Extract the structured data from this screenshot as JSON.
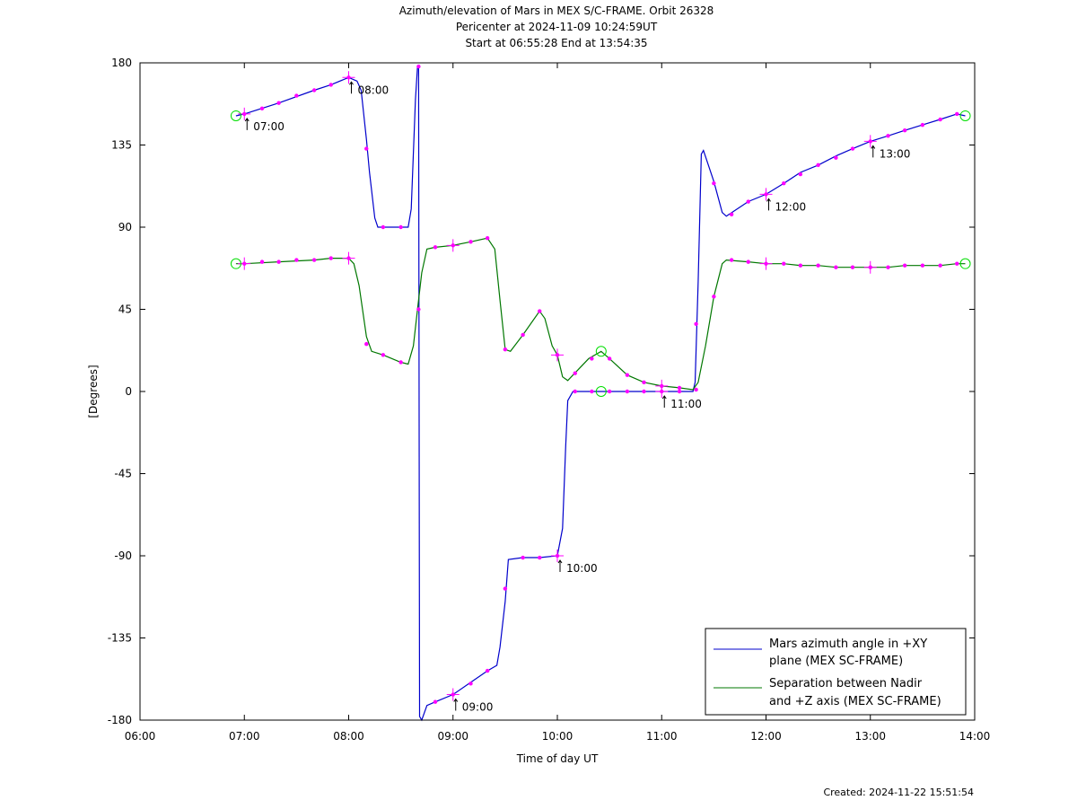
{
  "title": {
    "line1": "Azimuth/elevation of Mars in MEX S/C-FRAME.  Orbit 26328",
    "line2": "Pericenter at 2024-11-09 10:24:59UT",
    "line3": "Start at 06:55:28 End at 13:54:35"
  },
  "footer": {
    "created": "Created: 2024-11-22 15:51:54"
  },
  "colors": {
    "azimuth": "#0000cc",
    "separation": "#007700",
    "marker": "#ff00ff",
    "circle": "#00dd00"
  },
  "chart_data": {
    "type": "line",
    "xlabel": "Time of day UT",
    "ylabel": "[Degrees]",
    "xlim": [
      6.0,
      14.0
    ],
    "ylim": [
      -180,
      180
    ],
    "x_ticks": [
      6,
      7,
      8,
      9,
      10,
      11,
      12,
      13,
      14
    ],
    "x_tick_labels": [
      "06:00",
      "07:00",
      "08:00",
      "09:00",
      "10:00",
      "11:00",
      "12:00",
      "13:00",
      "14:00"
    ],
    "y_ticks": [
      180,
      135,
      90,
      45,
      0,
      -45,
      -90,
      -135,
      -180
    ],
    "y_tick_labels": [
      "180",
      "135",
      "90",
      "45",
      "0",
      "-45",
      "-90",
      "-135",
      "-180"
    ],
    "legend_position": "bottom-right",
    "series": [
      {
        "name": "Mars azimuth angle in +XY plane (MEX SC-FRAME)",
        "legend_lines": [
          "Mars azimuth angle in +XY",
          "plane (MEX SC-FRAME)"
        ],
        "points": [
          [
            6.92,
            151
          ],
          [
            7.0,
            152
          ],
          [
            7.33,
            158
          ],
          [
            7.67,
            165
          ],
          [
            7.83,
            168
          ],
          [
            8.0,
            172
          ],
          [
            8.08,
            170
          ],
          [
            8.12,
            165
          ],
          [
            8.17,
            138
          ],
          [
            8.2,
            120
          ],
          [
            8.25,
            95
          ],
          [
            8.28,
            90
          ],
          [
            8.33,
            90
          ],
          [
            8.5,
            90
          ],
          [
            8.57,
            90
          ],
          [
            8.6,
            100
          ],
          [
            8.64,
            160
          ],
          [
            8.66,
            178
          ],
          [
            8.67,
            178
          ],
          [
            8.68,
            -178
          ],
          [
            8.7,
            -180
          ],
          [
            8.75,
            -172
          ],
          [
            8.83,
            -170
          ],
          [
            9.0,
            -166
          ],
          [
            9.33,
            -153
          ],
          [
            9.42,
            -150
          ],
          [
            9.45,
            -140
          ],
          [
            9.5,
            -115
          ],
          [
            9.53,
            -92
          ],
          [
            9.67,
            -91
          ],
          [
            9.83,
            -91
          ],
          [
            10.0,
            -90
          ],
          [
            10.05,
            -75
          ],
          [
            10.08,
            -30
          ],
          [
            10.1,
            -5
          ],
          [
            10.15,
            0
          ],
          [
            10.42,
            0
          ],
          [
            11.0,
            0
          ],
          [
            11.3,
            0
          ],
          [
            11.32,
            5
          ],
          [
            11.35,
            60
          ],
          [
            11.38,
            130
          ],
          [
            11.4,
            132
          ],
          [
            11.5,
            115
          ],
          [
            11.58,
            98
          ],
          [
            11.62,
            96
          ],
          [
            11.83,
            104
          ],
          [
            12.0,
            108
          ],
          [
            12.17,
            114
          ],
          [
            12.33,
            120
          ],
          [
            12.5,
            124
          ],
          [
            12.67,
            129
          ],
          [
            12.83,
            133
          ],
          [
            13.0,
            137
          ],
          [
            13.17,
            140
          ],
          [
            13.33,
            143
          ],
          [
            13.5,
            146
          ],
          [
            13.67,
            149
          ],
          [
            13.83,
            152
          ],
          [
            13.91,
            151
          ]
        ],
        "markers": [
          [
            7.0,
            152
          ],
          [
            7.17,
            155
          ],
          [
            7.33,
            158
          ],
          [
            7.5,
            162
          ],
          [
            7.67,
            165
          ],
          [
            7.83,
            168
          ],
          [
            8.0,
            172
          ],
          [
            8.17,
            133
          ],
          [
            8.33,
            90
          ],
          [
            8.5,
            90
          ],
          [
            8.67,
            178
          ],
          [
            8.83,
            -170
          ],
          [
            9.0,
            -166
          ],
          [
            9.17,
            -160
          ],
          [
            9.33,
            -153
          ],
          [
            9.5,
            -108
          ],
          [
            9.67,
            -91
          ],
          [
            9.83,
            -91
          ],
          [
            10.0,
            -90
          ],
          [
            10.17,
            0
          ],
          [
            10.33,
            0
          ],
          [
            10.5,
            0
          ],
          [
            10.67,
            0
          ],
          [
            10.83,
            0
          ],
          [
            11.0,
            0
          ],
          [
            11.17,
            0
          ],
          [
            11.33,
            37
          ],
          [
            11.5,
            114
          ],
          [
            11.67,
            97
          ],
          [
            11.83,
            104
          ],
          [
            12.0,
            108
          ],
          [
            12.17,
            114
          ],
          [
            12.33,
            119
          ],
          [
            12.5,
            124
          ],
          [
            12.67,
            128
          ],
          [
            12.83,
            133
          ],
          [
            13.0,
            137
          ],
          [
            13.17,
            140
          ],
          [
            13.33,
            143
          ],
          [
            13.5,
            146
          ],
          [
            13.67,
            149
          ],
          [
            13.83,
            152
          ]
        ],
        "crosses": [
          [
            7.0,
            152
          ],
          [
            8.0,
            172
          ],
          [
            9.0,
            -166
          ],
          [
            10.0,
            -90
          ],
          [
            11.0,
            0
          ],
          [
            12.0,
            108
          ],
          [
            13.0,
            137
          ]
        ],
        "circles": [
          [
            6.92,
            151
          ],
          [
            10.42,
            0
          ],
          [
            13.91,
            151
          ]
        ]
      },
      {
        "name": "Separation between Nadir and +Z axis (MEX SC-FRAME)",
        "legend_lines": [
          "Separation between Nadir",
          "and +Z axis (MEX SC-FRAME)"
        ],
        "points": [
          [
            6.92,
            70
          ],
          [
            7.0,
            70
          ],
          [
            7.33,
            71
          ],
          [
            7.67,
            72
          ],
          [
            7.83,
            73
          ],
          [
            8.0,
            73
          ],
          [
            8.05,
            70
          ],
          [
            8.1,
            58
          ],
          [
            8.17,
            30
          ],
          [
            8.22,
            22
          ],
          [
            8.33,
            20
          ],
          [
            8.5,
            16
          ],
          [
            8.57,
            15
          ],
          [
            8.62,
            25
          ],
          [
            8.66,
            45
          ],
          [
            8.7,
            65
          ],
          [
            8.75,
            78
          ],
          [
            8.83,
            79
          ],
          [
            9.0,
            80
          ],
          [
            9.17,
            82
          ],
          [
            9.33,
            84
          ],
          [
            9.4,
            78
          ],
          [
            9.45,
            50
          ],
          [
            9.5,
            23
          ],
          [
            9.55,
            22
          ],
          [
            9.67,
            31
          ],
          [
            9.83,
            44
          ],
          [
            9.88,
            40
          ],
          [
            9.95,
            25
          ],
          [
            10.0,
            20
          ],
          [
            10.05,
            8
          ],
          [
            10.1,
            6
          ],
          [
            10.2,
            12
          ],
          [
            10.3,
            18
          ],
          [
            10.42,
            22
          ],
          [
            10.5,
            18
          ],
          [
            10.67,
            9
          ],
          [
            10.83,
            5
          ],
          [
            11.0,
            3
          ],
          [
            11.17,
            2
          ],
          [
            11.3,
            1
          ],
          [
            11.35,
            5
          ],
          [
            11.42,
            25
          ],
          [
            11.5,
            52
          ],
          [
            11.58,
            70
          ],
          [
            11.62,
            72
          ],
          [
            11.83,
            71
          ],
          [
            12.0,
            70
          ],
          [
            12.17,
            70
          ],
          [
            12.33,
            69
          ],
          [
            12.5,
            69
          ],
          [
            12.67,
            68
          ],
          [
            12.83,
            68
          ],
          [
            13.0,
            68
          ],
          [
            13.17,
            68
          ],
          [
            13.33,
            69
          ],
          [
            13.5,
            69
          ],
          [
            13.67,
            69
          ],
          [
            13.83,
            70
          ],
          [
            13.91,
            70
          ]
        ],
        "markers": [
          [
            7.0,
            70
          ],
          [
            7.17,
            71
          ],
          [
            7.33,
            71
          ],
          [
            7.5,
            72
          ],
          [
            7.67,
            72
          ],
          [
            7.83,
            73
          ],
          [
            8.0,
            73
          ],
          [
            8.17,
            26
          ],
          [
            8.33,
            20
          ],
          [
            8.5,
            16
          ],
          [
            8.67,
            45
          ],
          [
            8.83,
            79
          ],
          [
            9.0,
            80
          ],
          [
            9.17,
            82
          ],
          [
            9.33,
            84
          ],
          [
            9.5,
            23
          ],
          [
            9.67,
            31
          ],
          [
            9.83,
            44
          ],
          [
            10.0,
            20
          ],
          [
            10.17,
            10
          ],
          [
            10.33,
            18
          ],
          [
            10.5,
            18
          ],
          [
            10.67,
            9
          ],
          [
            10.83,
            5
          ],
          [
            11.0,
            3
          ],
          [
            11.17,
            2
          ],
          [
            11.33,
            1
          ],
          [
            11.5,
            52
          ],
          [
            11.67,
            72
          ],
          [
            11.83,
            71
          ],
          [
            12.0,
            70
          ],
          [
            12.17,
            70
          ],
          [
            12.33,
            69
          ],
          [
            12.5,
            69
          ],
          [
            12.67,
            68
          ],
          [
            12.83,
            68
          ],
          [
            13.0,
            68
          ],
          [
            13.17,
            68
          ],
          [
            13.33,
            69
          ],
          [
            13.5,
            69
          ],
          [
            13.67,
            69
          ],
          [
            13.83,
            70
          ]
        ],
        "crosses": [
          [
            7.0,
            70
          ],
          [
            8.0,
            73
          ],
          [
            9.0,
            80
          ],
          [
            10.0,
            20
          ],
          [
            11.0,
            3
          ],
          [
            12.0,
            70
          ],
          [
            13.0,
            68
          ]
        ],
        "circles": [
          [
            6.92,
            70
          ],
          [
            10.42,
            22
          ],
          [
            13.91,
            70
          ]
        ]
      }
    ],
    "annotations": [
      {
        "text": "07:00",
        "x": 7.0,
        "y": 152
      },
      {
        "text": "08:00",
        "x": 8.0,
        "y": 172
      },
      {
        "text": "09:00",
        "x": 9.0,
        "y": -166
      },
      {
        "text": "10:00",
        "x": 10.0,
        "y": -90
      },
      {
        "text": "11:00",
        "x": 11.0,
        "y": 0
      },
      {
        "text": "12:00",
        "x": 12.0,
        "y": 108
      },
      {
        "text": "13:00",
        "x": 13.0,
        "y": 137
      }
    ]
  }
}
